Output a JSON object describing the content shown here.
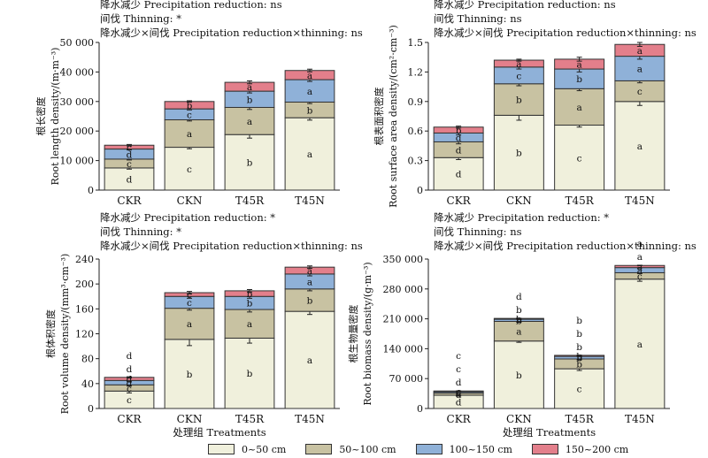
{
  "legend": [
    {
      "label": "0~50 cm",
      "color": "#f0f0dc"
    },
    {
      "label": "50~100 cm",
      "color": "#c8c2a2"
    },
    {
      "label": "100~150 cm",
      "color": "#8fb1d8"
    },
    {
      "label": "150~200 cm",
      "color": "#e37f8b"
    }
  ],
  "chart_data": [
    {
      "type": "bar",
      "stacked": true,
      "annotations": [
        "降水减少 Precipitation reduction: ns",
        "间伐 Thinning: *",
        "降水减少×间伐 Precipitation reduction×thinning: ns"
      ],
      "ylabel_cn": "根长密度",
      "ylabel_en": "Root length density/(m·m⁻³)",
      "xlabel": "",
      "categories": [
        "CKR",
        "CKN",
        "T45R",
        "T45N"
      ],
      "ylim": [
        0,
        50000
      ],
      "yticks": [
        0,
        10000,
        20000,
        30000,
        40000,
        50000
      ],
      "yticklabels": [
        "0",
        "10 000",
        "20 000",
        "30 000",
        "40 000",
        "50 000"
      ],
      "series": [
        {
          "name": "0~50 cm",
          "values": [
            7500,
            14500,
            18800,
            24500
          ],
          "err": [
            400,
            500,
            1200,
            800
          ],
          "letters": [
            "d",
            "c",
            "b",
            "a"
          ]
        },
        {
          "name": "50~100 cm",
          "values": [
            3000,
            9300,
            9200,
            5300
          ],
          "err": [
            300,
            400,
            700,
            500
          ],
          "letters": [
            "c",
            "a",
            "a",
            "b"
          ]
        },
        {
          "name": "100~150 cm",
          "values": [
            3400,
            3700,
            5500,
            7600
          ],
          "err": [
            300,
            350,
            600,
            600
          ],
          "letters": [
            "d",
            "c",
            "b",
            "a"
          ]
        },
        {
          "name": "150~200 cm",
          "values": [
            1300,
            2500,
            3000,
            3100
          ],
          "err": [
            250,
            250,
            500,
            450
          ],
          "letters": [
            "c",
            "b",
            "a",
            "a"
          ]
        }
      ]
    },
    {
      "type": "bar",
      "stacked": true,
      "annotations": [
        "降水减少 Precipitation reduction: ns",
        "间伐 Thinning: ns",
        "降水减少×间伐 Precipitation reduction×thinning: ns"
      ],
      "ylabel_cn": "根表面积密度",
      "ylabel_en": "Root surface area density/(cm²·cm⁻³)",
      "xlabel": "",
      "categories": [
        "CKR",
        "CKN",
        "T45R",
        "T45N"
      ],
      "ylim": [
        0,
        1.5
      ],
      "yticks": [
        0,
        0.3,
        0.6,
        0.9,
        1.2,
        1.5
      ],
      "yticklabels": [
        "0",
        "0.3",
        "0.6",
        "0.9",
        "1.2",
        "1.5"
      ],
      "series": [
        {
          "name": "0~50 cm",
          "values": [
            0.33,
            0.76,
            0.66,
            0.9
          ],
          "err": [
            0.02,
            0.05,
            0.02,
            0.04
          ],
          "letters": [
            "d",
            "b",
            "c",
            "a"
          ]
        },
        {
          "name": "50~100 cm",
          "values": [
            0.16,
            0.32,
            0.37,
            0.21
          ],
          "err": [
            0.02,
            0.02,
            0.02,
            0.02
          ],
          "letters": [
            "d",
            "b",
            "a",
            "c"
          ]
        },
        {
          "name": "100~150 cm",
          "values": [
            0.09,
            0.17,
            0.2,
            0.25
          ],
          "err": [
            0.02,
            0.02,
            0.03,
            0.03
          ],
          "letters": [
            "d",
            "c",
            "b",
            "a"
          ]
        },
        {
          "name": "150~200 cm",
          "values": [
            0.06,
            0.07,
            0.1,
            0.12
          ],
          "err": [
            0.01,
            0.01,
            0.02,
            0.02
          ],
          "letters": [
            "b",
            "a",
            "a",
            "a"
          ]
        }
      ]
    },
    {
      "type": "bar",
      "stacked": true,
      "annotations": [
        "降水减少 Precipitation reduction: *",
        "间伐 Thinning: *",
        "降水减少×间伐 Precipitation reduction×thinning: ns"
      ],
      "ylabel_cn": "根体积密度",
      "ylabel_en": "Root volume density/(mm³·cm⁻³)",
      "xlabel": "处理组 Treatments",
      "categories": [
        "CKR",
        "CKN",
        "T45R",
        "T45N"
      ],
      "ylim": [
        0,
        240
      ],
      "yticks": [
        0,
        40,
        80,
        120,
        160,
        200,
        240
      ],
      "yticklabels": [
        "0",
        "40",
        "80",
        "120",
        "160",
        "200",
        "240"
      ],
      "series": [
        {
          "name": "0~50 cm",
          "values": [
            28,
            111,
            113,
            156
          ],
          "err": [
            3,
            10,
            8,
            5
          ],
          "letters": [
            "c",
            "b",
            "b",
            "a"
          ]
        },
        {
          "name": "50~100 cm",
          "values": [
            10,
            50,
            46,
            36
          ],
          "err": [
            2,
            3,
            4,
            3
          ],
          "letters": [
            "c",
            "a",
            "a",
            "b"
          ]
        },
        {
          "name": "100~150 cm",
          "values": [
            7,
            19,
            21,
            24
          ],
          "err": [
            2,
            3,
            3,
            3
          ],
          "letters": [
            "d",
            "c",
            "b",
            "a"
          ]
        },
        {
          "name": "150~200 cm",
          "values": [
            5,
            6,
            9,
            11
          ],
          "err": [
            1,
            2,
            2,
            2
          ],
          "letters": [
            "d",
            "c",
            "b",
            "a"
          ]
        }
      ],
      "extra_letters": [
        [
          "d",
          "d"
        ],
        [],
        [],
        []
      ]
    },
    {
      "type": "bar",
      "stacked": true,
      "annotations": [
        "降水减少 Precipitation reduction: *",
        "间伐 Thinning: ns",
        "降水减少×间伐 Precipitation reduction×thinning: ns"
      ],
      "ylabel_cn": "根生物量密度",
      "ylabel_en": "Root biomass density/(g·m⁻³)",
      "xlabel": "处理组 Treatments",
      "categories": [
        "CKR",
        "CKN",
        "T45R",
        "T45N"
      ],
      "ylim": [
        0,
        350000
      ],
      "yticks": [
        0,
        70000,
        140000,
        210000,
        280000,
        350000
      ],
      "yticklabels": [
        "0",
        "70 000",
        "140 000",
        "210 000",
        "280 000",
        "350 000"
      ],
      "series": [
        {
          "name": "0~50 cm",
          "values": [
            31000,
            158000,
            93000,
            303000
          ],
          "err": [
            2000,
            3000,
            4000,
            5000
          ],
          "letters": [
            "d",
            "b",
            "c",
            "a"
          ]
        },
        {
          "name": "50~100 cm",
          "values": [
            5000,
            46000,
            23000,
            15000
          ],
          "err": [
            1000,
            2000,
            2000,
            2000
          ],
          "letters": [
            "d",
            "a",
            "b",
            "c"
          ]
        },
        {
          "name": "100~150 cm",
          "values": [
            3000,
            5000,
            6000,
            12000
          ],
          "err": [
            500,
            800,
            800,
            1000
          ],
          "letters": [
            "c",
            "b",
            "b",
            "a"
          ]
        },
        {
          "name": "150~200 cm",
          "values": [
            2000,
            2000,
            2500,
            5000
          ],
          "err": [
            400,
            400,
            400,
            600
          ],
          "letters": [
            "c",
            "b",
            "b",
            "a"
          ]
        }
      ],
      "extra_letters": [
        [
          "c",
          "c",
          "d"
        ],
        [
          "d",
          "b"
        ],
        [
          "b",
          "b",
          "b"
        ],
        [
          "a",
          "a"
        ]
      ]
    }
  ]
}
